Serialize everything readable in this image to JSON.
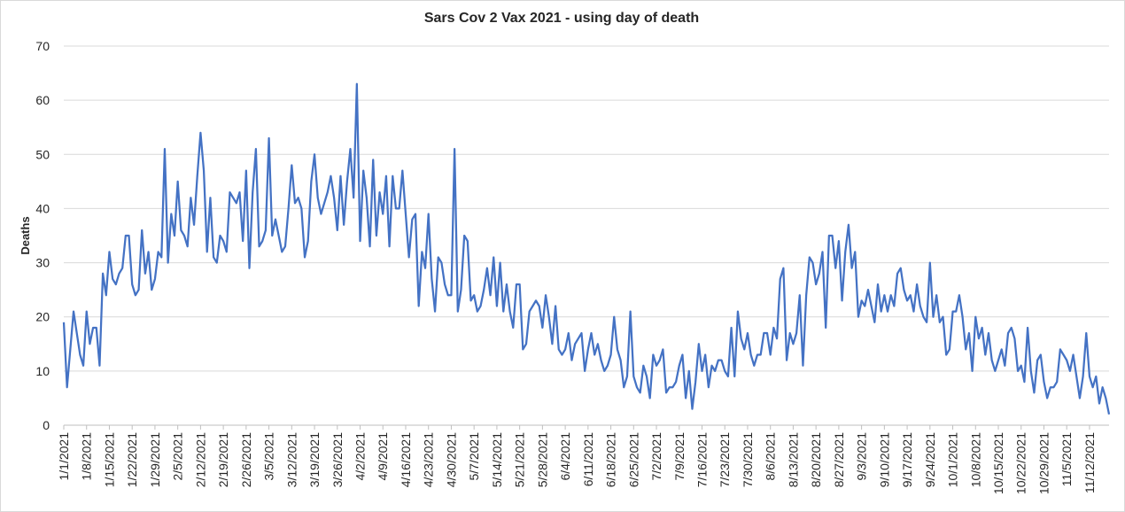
{
  "chart_data": {
    "type": "line",
    "title": "Sars Cov 2 Vax 2021 - using day of death",
    "xlabel": "",
    "ylabel": "Deaths",
    "ylim": [
      0,
      70
    ],
    "yticks": [
      0,
      10,
      20,
      30,
      40,
      50,
      60,
      70
    ],
    "grid": true,
    "legend": "none",
    "line_color": "#4472c4",
    "x_start": "1/1/2021",
    "x_tick_labels": [
      "1/1/2021",
      "1/8/2021",
      "1/15/2021",
      "1/22/2021",
      "1/29/2021",
      "2/5/2021",
      "2/12/2021",
      "2/19/2021",
      "2/26/2021",
      "3/5/2021",
      "3/12/2021",
      "3/19/2021",
      "3/26/2021",
      "4/2/2021",
      "4/9/2021",
      "4/16/2021",
      "4/23/2021",
      "4/30/2021",
      "5/7/2021",
      "5/14/2021",
      "5/21/2021",
      "5/28/2021",
      "6/4/2021",
      "6/11/2021",
      "6/18/2021",
      "6/25/2021",
      "7/2/2021",
      "7/9/2021",
      "7/16/2021",
      "7/23/2021",
      "7/30/2021",
      "8/6/2021",
      "8/13/2021",
      "8/20/2021",
      "8/27/2021",
      "9/3/2021",
      "9/10/2021",
      "9/17/2021",
      "9/24/2021",
      "10/1/2021",
      "10/8/2021",
      "10/15/2021",
      "10/22/2021",
      "10/29/2021",
      "11/5/2021",
      "11/12/2021"
    ],
    "values": [
      19,
      7,
      14,
      21,
      17,
      13,
      11,
      21,
      15,
      18,
      18,
      11,
      28,
      24,
      32,
      27,
      26,
      28,
      29,
      35,
      35,
      26,
      24,
      25,
      36,
      28,
      32,
      25,
      27,
      32,
      31,
      51,
      30,
      39,
      35,
      45,
      36,
      35,
      33,
      42,
      37,
      46,
      54,
      47,
      32,
      42,
      31,
      30,
      35,
      34,
      32,
      43,
      42,
      41,
      43,
      34,
      47,
      29,
      43,
      51,
      33,
      34,
      36,
      53,
      35,
      38,
      35,
      32,
      33,
      40,
      48,
      41,
      42,
      40,
      31,
      34,
      45,
      50,
      42,
      39,
      41,
      43,
      46,
      42,
      36,
      46,
      37,
      45,
      51,
      42,
      63,
      34,
      47,
      42,
      33,
      49,
      35,
      43,
      39,
      46,
      33,
      46,
      40,
      40,
      47,
      39,
      31,
      38,
      39,
      22,
      32,
      29,
      39,
      27,
      21,
      31,
      30,
      26,
      24,
      24,
      51,
      21,
      25,
      35,
      34,
      23,
      24,
      21,
      22,
      25,
      29,
      24,
      31,
      22,
      30,
      21,
      26,
      21,
      18,
      26,
      26,
      14,
      15,
      21,
      22,
      23,
      22,
      18,
      24,
      20,
      15,
      22,
      14,
      13,
      14,
      17,
      12,
      15,
      16,
      17,
      10,
      14,
      17,
      13,
      15,
      12,
      10,
      11,
      13,
      20,
      14,
      12,
      7,
      9,
      21,
      9,
      7,
      6,
      11,
      9,
      5,
      13,
      11,
      12,
      14,
      6,
      7,
      7,
      8,
      11,
      13,
      5,
      10,
      3,
      8,
      15,
      10,
      13,
      7,
      11,
      10,
      12,
      12,
      10,
      9,
      18,
      9,
      21,
      16,
      14,
      17,
      13,
      11,
      13,
      13,
      17,
      17,
      13,
      18,
      16,
      27,
      29,
      12,
      17,
      15,
      17,
      24,
      11,
      24,
      31,
      30,
      26,
      28,
      32,
      18,
      35,
      35,
      29,
      34,
      23,
      32,
      37,
      29,
      32,
      20,
      23,
      22,
      25,
      22,
      19,
      26,
      21,
      24,
      21,
      24,
      22,
      28,
      29,
      25,
      23,
      24,
      21,
      26,
      22,
      20,
      19,
      30,
      20,
      24,
      19,
      20,
      13,
      14,
      21,
      21,
      24,
      20,
      14,
      17,
      10,
      20,
      16,
      18,
      13,
      17,
      12,
      10,
      12,
      14,
      11,
      17,
      18,
      16,
      10,
      11,
      8,
      18,
      10,
      6,
      12,
      13,
      8,
      5,
      7,
      7,
      8,
      14,
      13,
      12,
      10,
      13,
      9,
      5,
      9,
      17,
      9,
      7,
      9,
      4,
      7,
      5,
      2
    ]
  }
}
